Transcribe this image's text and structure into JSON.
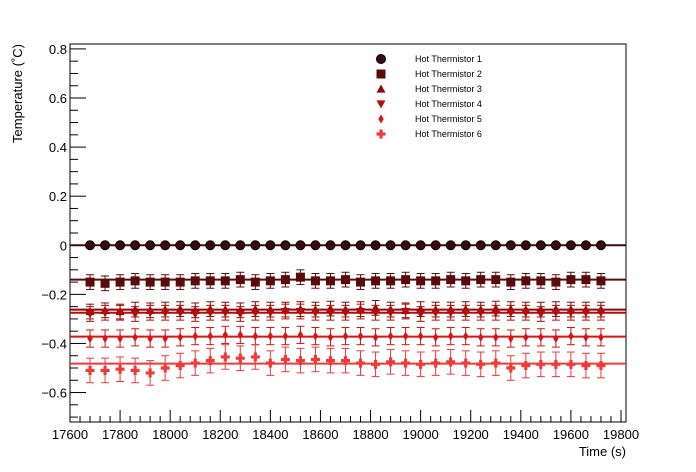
{
  "chart_data": {
    "type": "scatter",
    "title": "",
    "xlabel": "Time (s)",
    "ylabel": "Temperature (˚C)",
    "xlim": [
      17600,
      19820
    ],
    "ylim": [
      -0.72,
      0.82
    ],
    "xticks": [
      17600,
      17800,
      18000,
      18200,
      18400,
      18600,
      18800,
      19000,
      19200,
      19400,
      19600,
      19800
    ],
    "xtick_labels": [
      "17600",
      "17800",
      "18000",
      "18200",
      "18400",
      "18600",
      "18800",
      "19000",
      "19200",
      "19400",
      "19600",
      "19800"
    ],
    "yticks": [
      -0.6,
      -0.4,
      -0.2,
      0,
      0.2,
      0.4,
      0.6,
      0.8
    ],
    "ytick_labels": [
      "−0.6",
      "−0.4",
      "−0.2",
      "0",
      "0.2",
      "0.4",
      "0.6",
      "0.8"
    ],
    "grid": false,
    "legend_position": "top-right",
    "x": [
      17680,
      17740,
      17800,
      17860,
      17920,
      17980,
      18040,
      18100,
      18160,
      18220,
      18280,
      18340,
      18400,
      18460,
      18520,
      18580,
      18640,
      18700,
      18760,
      18820,
      18880,
      18940,
      19000,
      19060,
      19120,
      19180,
      19240,
      19300,
      19360,
      19420,
      19480,
      19540,
      19600,
      19660,
      19720
    ],
    "series": [
      {
        "name": "Hot Thermistor 1",
        "marker": "circle",
        "color": "#3d0a0a",
        "fit": 0,
        "values": [
          0,
          0,
          0,
          0,
          0,
          0,
          0,
          0,
          0,
          0,
          0,
          0,
          0,
          0,
          0,
          0,
          0,
          0,
          0,
          0,
          0,
          0,
          0,
          0,
          0,
          0,
          0,
          0,
          0,
          0,
          0,
          0,
          0,
          0,
          0
        ],
        "errors": [
          0.005,
          0.005,
          0.005,
          0.005,
          0.005,
          0.005,
          0.005,
          0.005,
          0.005,
          0.005,
          0.005,
          0.005,
          0.005,
          0.005,
          0.005,
          0.005,
          0.005,
          0.005,
          0.005,
          0.005,
          0.005,
          0.005,
          0.005,
          0.005,
          0.005,
          0.005,
          0.005,
          0.005,
          0.005,
          0.005,
          0.005,
          0.005,
          0.005,
          0.005,
          0.005
        ]
      },
      {
        "name": "Hot Thermistor 2",
        "marker": "square",
        "color": "#5a0a0a",
        "fit": -0.14,
        "values": [
          -0.15,
          -0.155,
          -0.15,
          -0.145,
          -0.15,
          -0.15,
          -0.15,
          -0.145,
          -0.145,
          -0.145,
          -0.14,
          -0.15,
          -0.145,
          -0.14,
          -0.13,
          -0.145,
          -0.145,
          -0.14,
          -0.15,
          -0.145,
          -0.145,
          -0.14,
          -0.145,
          -0.145,
          -0.14,
          -0.145,
          -0.14,
          -0.14,
          -0.15,
          -0.145,
          -0.145,
          -0.15,
          -0.14,
          -0.14,
          -0.145
        ],
        "errors": [
          0.03,
          0.03,
          0.03,
          0.03,
          0.03,
          0.03,
          0.03,
          0.03,
          0.03,
          0.03,
          0.03,
          0.03,
          0.03,
          0.03,
          0.03,
          0.03,
          0.03,
          0.03,
          0.03,
          0.03,
          0.03,
          0.03,
          0.03,
          0.03,
          0.03,
          0.03,
          0.03,
          0.03,
          0.03,
          0.03,
          0.03,
          0.03,
          0.03,
          0.03,
          0.03
        ]
      },
      {
        "name": "Hot Thermistor 3",
        "marker": "triangle-up",
        "color": "#8a0b0b",
        "fit": -0.262,
        "values": [
          -0.27,
          -0.265,
          -0.27,
          -0.262,
          -0.265,
          -0.262,
          -0.26,
          -0.265,
          -0.26,
          -0.262,
          -0.265,
          -0.26,
          -0.262,
          -0.262,
          -0.26,
          -0.262,
          -0.258,
          -0.262,
          -0.26,
          -0.255,
          -0.262,
          -0.265,
          -0.26,
          -0.262,
          -0.262,
          -0.26,
          -0.262,
          -0.258,
          -0.26,
          -0.262,
          -0.262,
          -0.26,
          -0.262,
          -0.262,
          -0.262
        ],
        "errors": [
          0.03,
          0.03,
          0.03,
          0.03,
          0.03,
          0.03,
          0.03,
          0.03,
          0.03,
          0.03,
          0.03,
          0.03,
          0.03,
          0.03,
          0.03,
          0.03,
          0.03,
          0.03,
          0.03,
          0.03,
          0.03,
          0.03,
          0.03,
          0.03,
          0.03,
          0.03,
          0.03,
          0.03,
          0.03,
          0.03,
          0.03,
          0.03,
          0.03,
          0.03,
          0.03
        ]
      },
      {
        "name": "Hot Thermistor 4",
        "marker": "triangle-down",
        "color": "#b80c0c",
        "fit": -0.275,
        "values": [
          -0.28,
          -0.275,
          -0.275,
          -0.28,
          -0.275,
          -0.275,
          -0.275,
          -0.28,
          -0.275,
          -0.275,
          -0.28,
          -0.275,
          -0.275,
          -0.27,
          -0.27,
          -0.275,
          -0.275,
          -0.275,
          -0.27,
          -0.275,
          -0.275,
          -0.27,
          -0.28,
          -0.275,
          -0.275,
          -0.275,
          -0.275,
          -0.275,
          -0.275,
          -0.275,
          -0.28,
          -0.275,
          -0.275,
          -0.275,
          -0.275
        ],
        "errors": [
          0.03,
          0.03,
          0.03,
          0.03,
          0.03,
          0.03,
          0.03,
          0.03,
          0.03,
          0.03,
          0.03,
          0.03,
          0.03,
          0.03,
          0.03,
          0.03,
          0.03,
          0.03,
          0.03,
          0.03,
          0.03,
          0.03,
          0.03,
          0.03,
          0.03,
          0.03,
          0.03,
          0.03,
          0.03,
          0.03,
          0.03,
          0.03,
          0.03,
          0.03,
          0.03
        ]
      },
      {
        "name": "Hot Thermistor 5",
        "marker": "diamond",
        "color": "#d81414",
        "fit": -0.372,
        "values": [
          -0.38,
          -0.38,
          -0.38,
          -0.375,
          -0.38,
          -0.38,
          -0.375,
          -0.37,
          -0.37,
          -0.365,
          -0.365,
          -0.37,
          -0.37,
          -0.37,
          -0.365,
          -0.37,
          -0.375,
          -0.37,
          -0.37,
          -0.375,
          -0.37,
          -0.37,
          -0.37,
          -0.375,
          -0.37,
          -0.37,
          -0.375,
          -0.375,
          -0.38,
          -0.375,
          -0.375,
          -0.38,
          -0.37,
          -0.375,
          -0.375
        ],
        "errors": [
          0.035,
          0.035,
          0.035,
          0.035,
          0.035,
          0.035,
          0.035,
          0.035,
          0.035,
          0.035,
          0.035,
          0.035,
          0.035,
          0.035,
          0.035,
          0.035,
          0.035,
          0.035,
          0.035,
          0.035,
          0.035,
          0.035,
          0.035,
          0.035,
          0.035,
          0.035,
          0.035,
          0.035,
          0.035,
          0.035,
          0.035,
          0.035,
          0.035,
          0.035,
          0.035
        ]
      },
      {
        "name": "Hot Thermistor 6",
        "marker": "cross",
        "color": "#f03a3a",
        "fit": -0.482,
        "values": [
          -0.51,
          -0.51,
          -0.505,
          -0.51,
          -0.52,
          -0.5,
          -0.49,
          -0.48,
          -0.47,
          -0.455,
          -0.46,
          -0.455,
          -0.48,
          -0.465,
          -0.47,
          -0.465,
          -0.47,
          -0.47,
          -0.48,
          -0.485,
          -0.475,
          -0.48,
          -0.485,
          -0.48,
          -0.475,
          -0.48,
          -0.485,
          -0.48,
          -0.5,
          -0.49,
          -0.485,
          -0.485,
          -0.485,
          -0.49,
          -0.49
        ],
        "errors": [
          0.05,
          0.05,
          0.05,
          0.05,
          0.05,
          0.05,
          0.05,
          0.05,
          0.05,
          0.05,
          0.05,
          0.05,
          0.05,
          0.05,
          0.05,
          0.05,
          0.05,
          0.05,
          0.05,
          0.05,
          0.05,
          0.05,
          0.05,
          0.05,
          0.05,
          0.05,
          0.05,
          0.05,
          0.05,
          0.05,
          0.05,
          0.05,
          0.05,
          0.05,
          0.05
        ]
      }
    ]
  }
}
